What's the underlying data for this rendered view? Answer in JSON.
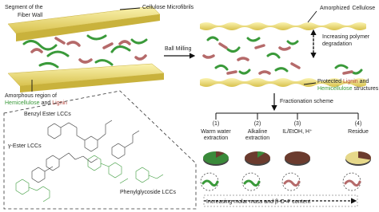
{
  "left_panel": {
    "title": [
      "Segment of the",
      "Fiber Wall"
    ],
    "microfibrils_label": "Cellulose Microfibrils",
    "amorphous_label": {
      "line1": "Amorphous region of",
      "hemicellulose": "Hemicellulose",
      "and": "and",
      "lignin": "Lignin"
    }
  },
  "process": {
    "ball_milling": "Ball Milling"
  },
  "right_panel": {
    "amorphized_label": [
      "Amorphized",
      "Cellulose"
    ],
    "degradation_label": [
      "Increasing polymer",
      "degradation"
    ],
    "protected_label": {
      "protected": "Protected",
      "lignin": "Lignin",
      "and": "and",
      "hemicellulose": "Hemicellulose",
      "structures": "structures"
    }
  },
  "lcc_panel": {
    "benzyl_ester": "Benzyl Ester LCCs",
    "gamma_ester": "γ-Ester LCCs",
    "phenylglycoside": "Phenylglycoside LCCs"
  },
  "fractionation": {
    "title": "Fractionation scheme",
    "fractions": [
      {
        "number": "(1)",
        "name": [
          "Warm water",
          "extraction"
        ]
      },
      {
        "number": "(2)",
        "name": [
          "Alkaline",
          "extraction"
        ]
      },
      {
        "number": "(3)",
        "name": [
          "IL/EtOH, H⁺"
        ]
      },
      {
        "number": "(4)",
        "name": [
          "Residue"
        ]
      }
    ],
    "trend": "Increasing molar mass and β-O-4' content"
  }
}
